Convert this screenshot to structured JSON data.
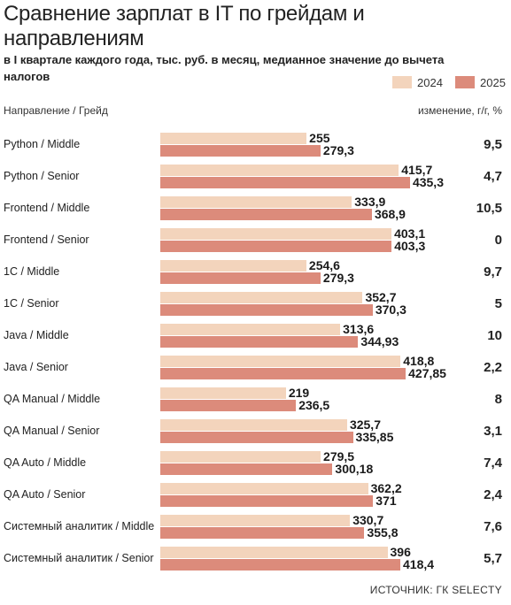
{
  "title": "Сравнение зарплат в IT по грейдам и направлениям",
  "subtitle": "в I квартале каждого года, тыс. руб. в месяц, медианное значение до вычета налогов",
  "legend": [
    "2024",
    "2025"
  ],
  "colors": {
    "s2024": "#f3d4bc",
    "s2025": "#dc8b7b"
  },
  "header_left": "Направление / Грейд",
  "header_right": "изменение, г/г, %",
  "source": "ИСТОЧНИК: ГК SELECTY",
  "chart_data": {
    "type": "bar",
    "orientation": "horizontal",
    "categories": [
      "Python / Middle",
      "Python / Senior",
      "Frontend / Middle",
      "Frontend / Senior",
      "1C / Middle",
      "1C / Senior",
      "Java / Middle",
      "Java / Senior",
      "QA Manual / Middle",
      "QA Manual / Senior",
      "QA Auto / Middle",
      "QA Auto / Senior",
      "Системный аналитик / Middle",
      "Системный аналитик / Senior"
    ],
    "series": [
      {
        "name": "2024",
        "values": [
          255,
          415.7,
          333.9,
          403.1,
          254.6,
          352.7,
          313.6,
          418.8,
          219,
          325.7,
          279.5,
          362.2,
          330.7,
          396
        ],
        "labels": [
          "255",
          "415,7",
          "333,9",
          "403,1",
          "254,6",
          "352,7",
          "313,6",
          "418,8",
          "219",
          "325,7",
          "279,5",
          "362,2",
          "330,7",
          "396"
        ]
      },
      {
        "name": "2025",
        "values": [
          279.3,
          435.3,
          368.9,
          403.3,
          279.3,
          370.3,
          344.93,
          427.85,
          236.5,
          335.85,
          300.18,
          371,
          355.8,
          418.4
        ],
        "labels": [
          "279,3",
          "435,3",
          "368,9",
          "403,3",
          "279,3",
          "370,3",
          "344,93",
          "427,85",
          "236,5",
          "335,85",
          "300,18",
          "371",
          "355,8",
          "418,4"
        ]
      }
    ],
    "change": [
      "9,5",
      "4,7",
      "10,5",
      "0",
      "9,7",
      "5",
      "10",
      "2,2",
      "8",
      "3,1",
      "7,4",
      "2,4",
      "7,6",
      "5,7"
    ],
    "xlim": [
      0,
      440
    ]
  }
}
